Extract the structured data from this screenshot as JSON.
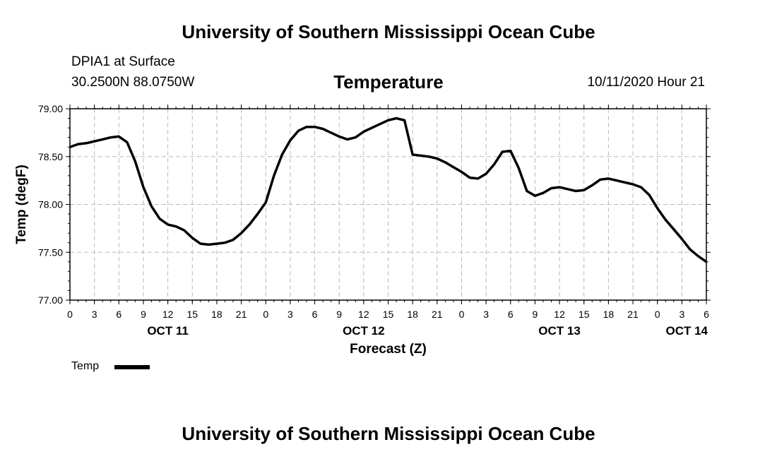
{
  "header": {
    "title": "University of Southern Mississippi Ocean Cube",
    "station": "DPIA1 at Surface",
    "location": "30.2500N 88.0750W",
    "variable": "Temperature",
    "datetime": "10/11/2020 Hour 21"
  },
  "footer": {
    "title": "University of Southern Mississippi Ocean Cube"
  },
  "legend": {
    "label": "Temp"
  },
  "chart_data": {
    "type": "line",
    "title": "Temperature",
    "xlabel": "Forecast (Z)",
    "ylabel": "Temp (degF)",
    "ylim": [
      77.0,
      79.0
    ],
    "yticks": [
      "77.00",
      "77.50",
      "78.00",
      "78.50",
      "79.00"
    ],
    "x_unit": "hours from Oct 11 00Z",
    "xlim": [
      0,
      78
    ],
    "xtick_labels": [
      "0",
      "3",
      "6",
      "9",
      "12",
      "15",
      "18",
      "21",
      "0",
      "3",
      "6",
      "9",
      "12",
      "15",
      "18",
      "21",
      "0",
      "3",
      "6",
      "9",
      "12",
      "15",
      "18",
      "21",
      "0",
      "3",
      "6"
    ],
    "date_labels": [
      {
        "hour": 12,
        "label": "OCT 11"
      },
      {
        "hour": 36,
        "label": "OCT 12"
      },
      {
        "hour": 60,
        "label": "OCT 13"
      },
      {
        "hour": 84,
        "label": "OCT 14"
      }
    ],
    "grid": true,
    "series": [
      {
        "name": "Temp",
        "color": "#000000",
        "x": [
          0,
          1,
          2,
          3,
          4,
          5,
          6,
          7,
          8,
          9,
          10,
          11,
          12,
          13,
          14,
          15,
          16,
          17,
          18,
          19,
          20,
          21,
          22,
          23,
          24,
          25,
          26,
          27,
          28,
          29,
          30,
          31,
          32,
          33,
          34,
          35,
          36,
          37,
          38,
          39,
          40,
          41,
          42,
          43,
          44,
          45,
          46,
          47,
          48,
          49,
          50,
          51,
          52,
          53,
          54,
          55,
          56,
          57,
          58,
          59,
          60,
          61,
          62,
          63,
          64,
          65,
          66,
          67,
          68,
          69,
          70,
          71,
          72,
          73,
          74,
          75,
          76,
          77,
          78
        ],
        "values": [
          78.6,
          78.63,
          78.64,
          78.66,
          78.68,
          78.7,
          78.71,
          78.65,
          78.45,
          78.18,
          77.98,
          77.85,
          77.79,
          77.77,
          77.73,
          77.65,
          77.59,
          77.58,
          77.59,
          77.6,
          77.63,
          77.7,
          77.79,
          77.9,
          78.02,
          78.3,
          78.52,
          78.67,
          78.77,
          78.81,
          78.81,
          78.79,
          78.75,
          78.71,
          78.68,
          78.7,
          78.76,
          78.8,
          78.84,
          78.88,
          78.9,
          78.88,
          78.52,
          78.51,
          78.5,
          78.48,
          78.44,
          78.39,
          78.34,
          78.28,
          78.27,
          78.32,
          78.42,
          78.55,
          78.56,
          78.38,
          78.14,
          78.09,
          78.12,
          78.17,
          78.18,
          78.16,
          78.14,
          78.15,
          78.2,
          78.26,
          78.27,
          78.25,
          78.23,
          78.21,
          78.18,
          78.1,
          77.96,
          77.84,
          77.74,
          77.64,
          77.53,
          77.46,
          77.4
        ]
      }
    ]
  }
}
